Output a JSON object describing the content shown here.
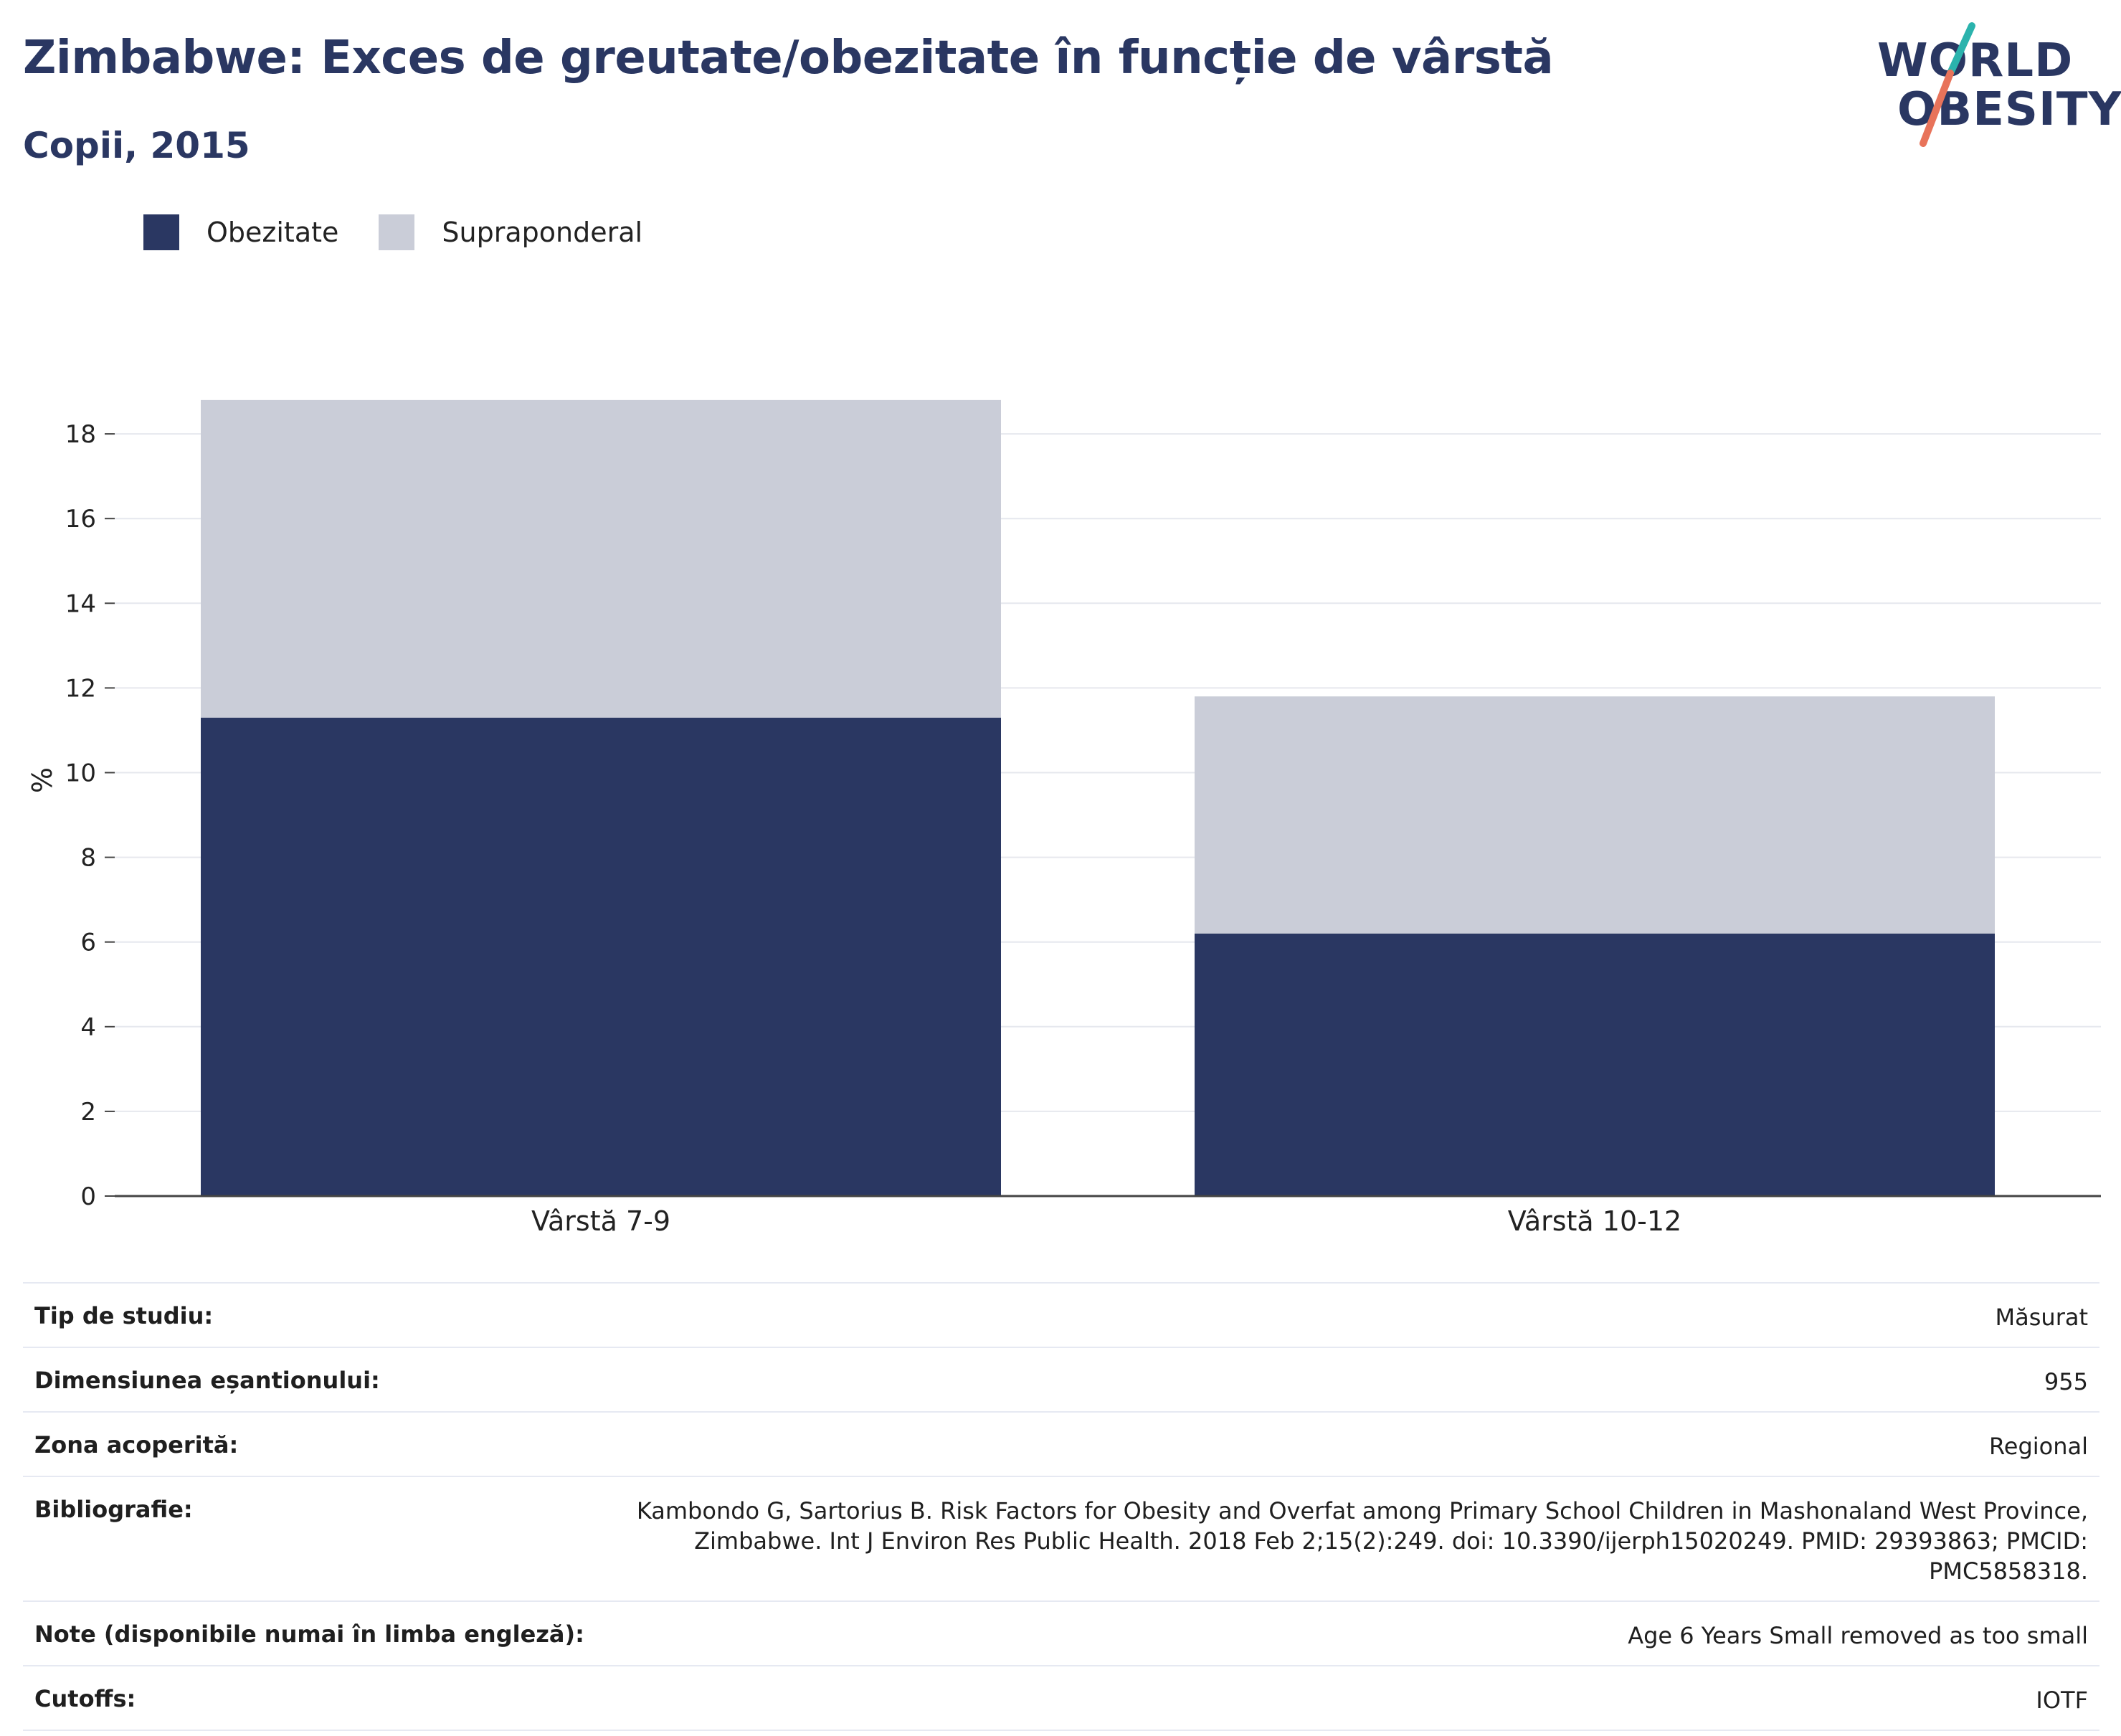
{
  "header": {
    "title": "Zimbabwe: Exces de greutate/obezitate în funcție de vârstă",
    "subtitle": "Copii, 2015"
  },
  "logo": {
    "line1": "WORLD",
    "line2": "OBESITY",
    "accent_colors": [
      "#2bb3ad",
      "#e8735a"
    ]
  },
  "chart_data": {
    "type": "bar",
    "stacked": true,
    "categories": [
      "Vârstă 7-9",
      "Vârstă 10-12"
    ],
    "series": [
      {
        "name": "Obezitate",
        "color": "#2a3762",
        "values": [
          11.3,
          6.2
        ]
      },
      {
        "name": "Supraponderal",
        "color": "#cacdd8",
        "values": [
          7.5,
          5.6
        ]
      }
    ],
    "ylabel": "%",
    "ylim": [
      0,
      19
    ],
    "yticks": [
      0,
      2,
      4,
      6,
      8,
      10,
      12,
      14,
      16,
      18
    ],
    "grid": true,
    "legend_position": "top-left"
  },
  "meta": {
    "rows": [
      {
        "label": "Tip de studiu:",
        "value": "Măsurat"
      },
      {
        "label": "Dimensiunea eșantionului:",
        "value": "955"
      },
      {
        "label": "Zona acoperită:",
        "value": "Regional"
      },
      {
        "label": "Bibliografie:",
        "value": "Kambondo G, Sartorius B. Risk Factors for Obesity and Overfat among Primary School Children in Mashonaland West Province, Zimbabwe. Int J Environ Res Public Health. 2018 Feb 2;15(2):249. doi: 10.3390/ijerph15020249. PMID: 29393863; PMCID: PMC5858318."
      },
      {
        "label": "Note (disponibile numai în limba engleză):",
        "value": "Age 6 Years Small removed as too small"
      },
      {
        "label": "Cutoffs:",
        "value": "IOTF"
      }
    ]
  }
}
